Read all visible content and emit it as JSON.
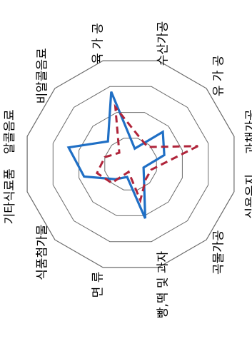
{
  "chart_data": {
    "type": "radar",
    "title": "",
    "axes": [
      "과채가공",
      "식용유지",
      "곡물가공",
      "빵,떡 및 과자",
      "면 류",
      "식품첨가물",
      "기타식료품",
      "알콜음료",
      "비알콜음료",
      "육 가 공",
      "수산가공",
      "유 가 공"
    ],
    "rings": 4,
    "rmax": 4,
    "grid": true,
    "legend": "none",
    "series": [
      {
        "color": "#1f6fc5",
        "dash": "solid",
        "values": [
          1.3,
          0.5,
          0.7,
          2.1,
          0.5,
          0.8,
          1.8,
          2.4,
          1.2,
          2.8,
          0.6,
          1.7
        ]
      },
      {
        "color": "#b0243a",
        "dash": "dashed",
        "values": [
          2.6,
          0.8,
          0.8,
          1.4,
          0.3,
          1.0,
          1.3,
          1.0,
          0.6,
          2.2,
          1.1,
          0.9
        ]
      }
    ]
  }
}
